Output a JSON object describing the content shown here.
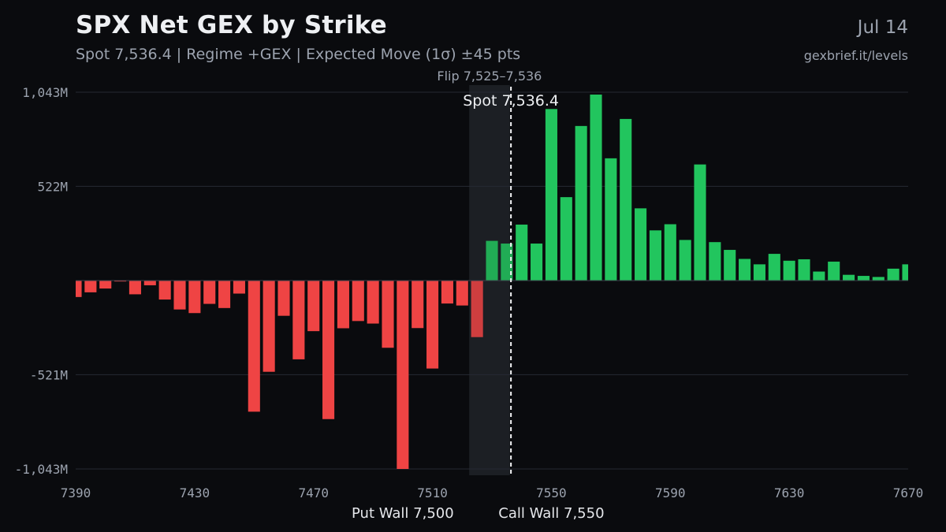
{
  "header": {
    "title": "SPX Net GEX by Strike",
    "subtitle": "Spot 7,536.4 | Regime +GEX | Expected Move (1σ) ±45 pts",
    "date": "Jul 14",
    "source": "gexbrief.it/levels"
  },
  "colors": {
    "background": "#0a0b0e",
    "positive": "#22c55e",
    "negative": "#ef4444",
    "grid": "#262a33",
    "flip_zone": "#1c1f24",
    "text_muted": "#9ca3af",
    "text_bright": "#eef0f3"
  },
  "chart_data": {
    "type": "bar",
    "title": "SPX Net GEX by Strike",
    "xlabel": "",
    "ylabel": "",
    "xlim": [
      7390,
      7670
    ],
    "ylim": [
      -1043,
      1043
    ],
    "grid": true,
    "bar_width": 4,
    "yticks": [
      {
        "value": 1043,
        "label": "1,043M"
      },
      {
        "value": 522,
        "label": "522M"
      },
      {
        "value": -521,
        "label": "-521M"
      },
      {
        "value": -1043,
        "label": "-1,043M"
      }
    ],
    "xticks": [
      {
        "value": 7390,
        "label": "7390"
      },
      {
        "value": 7430,
        "label": "7430"
      },
      {
        "value": 7470,
        "label": "7470"
      },
      {
        "value": 7510,
        "label": "7510"
      },
      {
        "value": 7550,
        "label": "7550"
      },
      {
        "value": 7590,
        "label": "7590"
      },
      {
        "value": 7630,
        "label": "7630"
      },
      {
        "value": 7670,
        "label": "7670"
      }
    ],
    "x": [
      7390,
      7395,
      7400,
      7405,
      7410,
      7415,
      7420,
      7425,
      7430,
      7435,
      7440,
      7445,
      7450,
      7455,
      7460,
      7465,
      7470,
      7475,
      7480,
      7485,
      7490,
      7495,
      7500,
      7505,
      7510,
      7515,
      7520,
      7525,
      7530,
      7535,
      7540,
      7545,
      7550,
      7555,
      7560,
      7565,
      7570,
      7575,
      7580,
      7585,
      7590,
      7595,
      7600,
      7605,
      7610,
      7615,
      7620,
      7625,
      7630,
      7635,
      7640,
      7645,
      7650,
      7655,
      7660,
      7665,
      7670
    ],
    "values": [
      -91,
      -65,
      -44,
      -5,
      -76,
      -26,
      -105,
      -160,
      -180,
      -129,
      -152,
      -72,
      -726,
      -505,
      -195,
      -436,
      -280,
      -767,
      -264,
      -224,
      -238,
      -372,
      -1043,
      -263,
      -487,
      -127,
      -138,
      -313,
      220,
      205,
      310,
      205,
      950,
      462,
      856,
      1030,
      677,
      895,
      400,
      278,
      312,
      225,
      643,
      213,
      170,
      120,
      90,
      148,
      110,
      118,
      50,
      105,
      32,
      26,
      20,
      66,
      90
    ],
    "flip_zone": {
      "from": 7525,
      "to": 7536,
      "label": "Flip 7,525–7,536"
    },
    "spot": {
      "value": 7536.4,
      "label": "Spot 7,536.4"
    },
    "walls": [
      {
        "label": "Put Wall 7,500",
        "value": 7500
      },
      {
        "label": "Call Wall 7,550",
        "value": 7550
      }
    ]
  }
}
